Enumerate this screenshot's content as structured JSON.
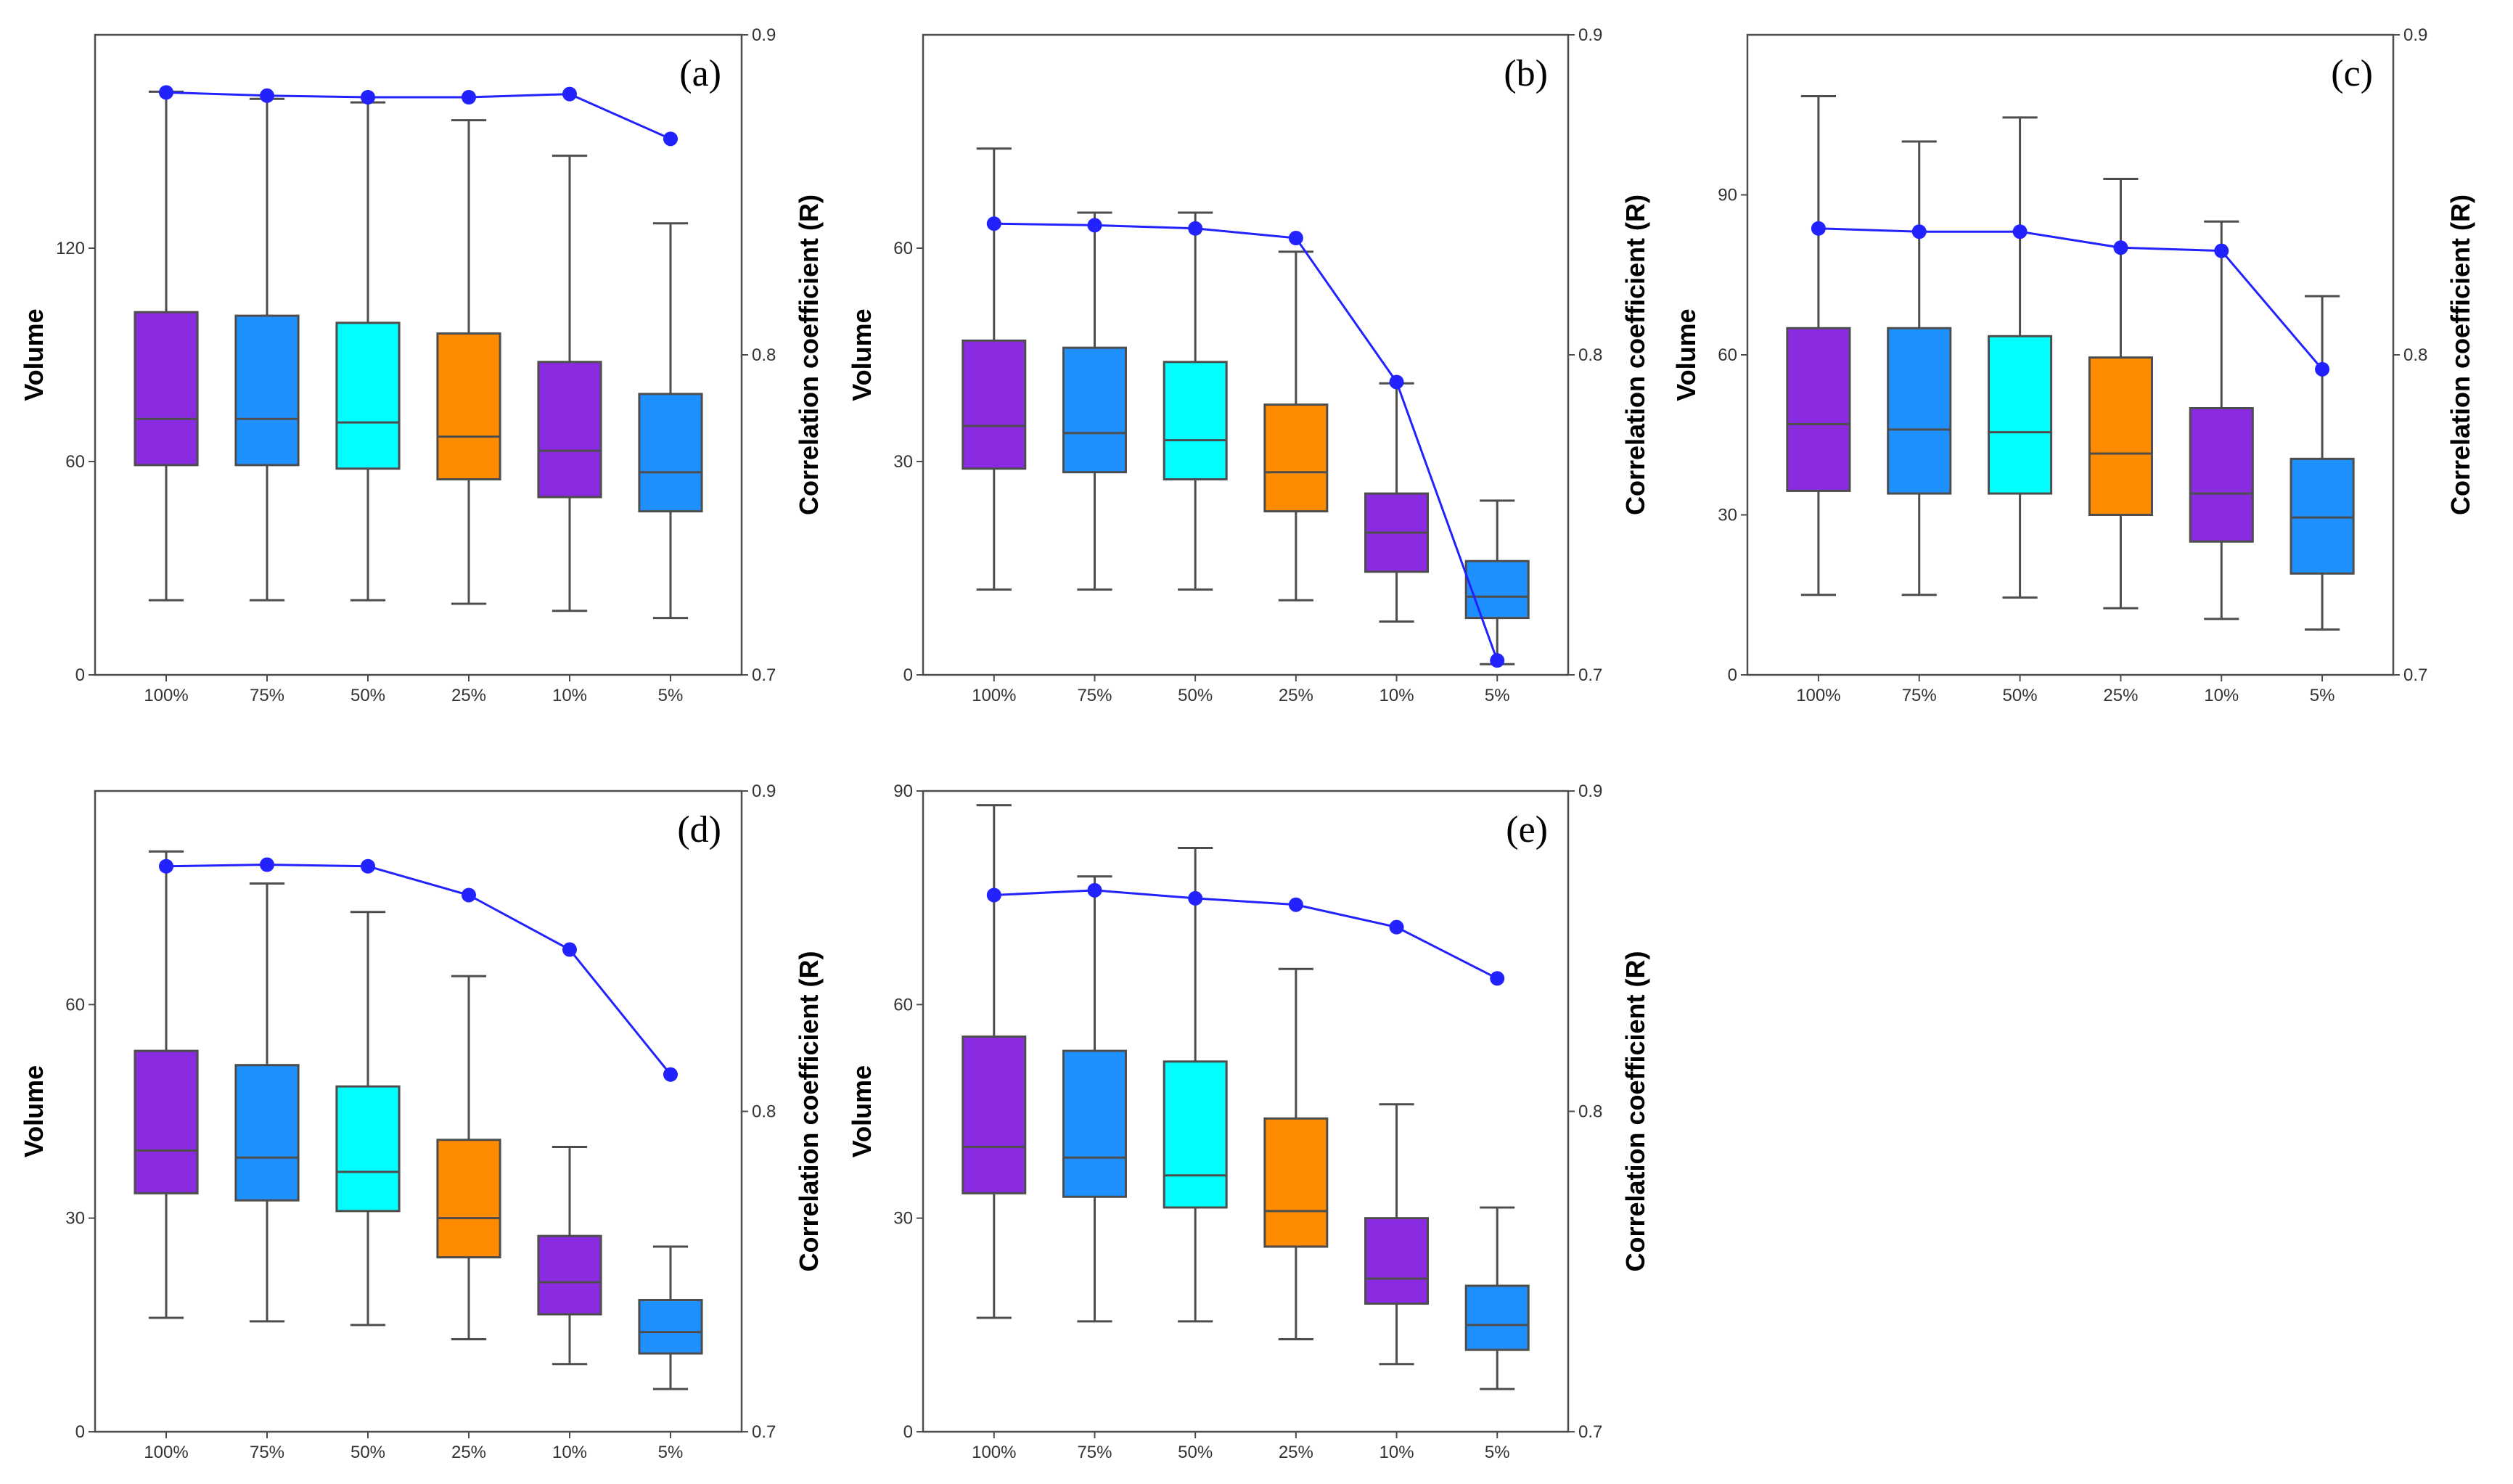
{
  "chart_data": [
    {
      "id": "a",
      "type": "box",
      "panel_label": "(a)",
      "categories": [
        "100%",
        "75%",
        "50%",
        "25%",
        "10%",
        "5%"
      ],
      "ylabel": "Volume",
      "y2label": "Correlation coefficient (R)",
      "ylim": [
        0,
        180
      ],
      "yticks": [
        "0",
        "60",
        "120"
      ],
      "y2lim": [
        0.7,
        0.9
      ],
      "y2ticks": [
        "0.7",
        "0.8",
        "0.9"
      ],
      "box_colors": [
        "#8A2BE2",
        "#1E90FF",
        "#00FFFF",
        "#FF8C00",
        "#8A2BE2",
        "#1E90FF"
      ],
      "line_color": "#2222FF",
      "boxes": [
        {
          "min": 21,
          "q1": 59,
          "median": 72,
          "q3": 102,
          "max": 164
        },
        {
          "min": 21,
          "q1": 59,
          "median": 72,
          "q3": 101,
          "max": 162
        },
        {
          "min": 21,
          "q1": 58,
          "median": 71,
          "q3": 99,
          "max": 161
        },
        {
          "min": 20,
          "q1": 55,
          "median": 67,
          "q3": 96,
          "max": 156
        },
        {
          "min": 18,
          "q1": 50,
          "median": 63,
          "q3": 88,
          "max": 146
        },
        {
          "min": 16,
          "q1": 46,
          "median": 57,
          "q3": 79,
          "max": 127
        }
      ],
      "correlation": [
        0.882,
        0.881,
        0.8805,
        0.8805,
        0.8815,
        0.8675
      ]
    },
    {
      "id": "b",
      "type": "box",
      "panel_label": "(b)",
      "categories": [
        "100%",
        "75%",
        "50%",
        "25%",
        "10%",
        "5%"
      ],
      "ylabel": "Volume",
      "y2label": "Correlation coefficient (R)",
      "ylim": [
        0,
        90
      ],
      "yticks": [
        "0",
        "30",
        "60"
      ],
      "y2lim": [
        0.7,
        0.9
      ],
      "y2ticks": [
        "0.7",
        "0.8",
        "0.9"
      ],
      "box_colors": [
        "#8A2BE2",
        "#1E90FF",
        "#00FFFF",
        "#FF8C00",
        "#8A2BE2",
        "#1E90FF"
      ],
      "line_color": "#2222FF",
      "boxes": [
        {
          "min": 12,
          "q1": 29,
          "median": 35,
          "q3": 47,
          "max": 74
        },
        {
          "min": 12,
          "q1": 28.5,
          "median": 34,
          "q3": 46,
          "max": 65
        },
        {
          "min": 12,
          "q1": 27.5,
          "median": 33,
          "q3": 44,
          "max": 65
        },
        {
          "min": 10.5,
          "q1": 23,
          "median": 28.5,
          "q3": 38,
          "max": 59.5
        },
        {
          "min": 7.5,
          "q1": 14.5,
          "median": 20,
          "q3": 25.5,
          "max": 41
        },
        {
          "min": 1.5,
          "q1": 8,
          "median": 11,
          "q3": 16,
          "max": 24.5
        }
      ],
      "correlation": [
        0.841,
        0.8405,
        0.8395,
        0.8365,
        0.7915,
        0.7045
      ]
    },
    {
      "id": "c",
      "type": "box",
      "panel_label": "(c)",
      "categories": [
        "100%",
        "75%",
        "50%",
        "25%",
        "10%",
        "5%"
      ],
      "ylabel": "Volume",
      "y2label": "Correlation coefficient (R)",
      "ylim": [
        0,
        120
      ],
      "yticks": [
        "0",
        "30",
        "60",
        "90"
      ],
      "y2lim": [
        0.7,
        0.9
      ],
      "y2ticks": [
        "0.7",
        "0.8",
        "0.9"
      ],
      "box_colors": [
        "#8A2BE2",
        "#1E90FF",
        "#00FFFF",
        "#FF8C00",
        "#8A2BE2",
        "#1E90FF"
      ],
      "line_color": "#2222FF",
      "boxes": [
        {
          "min": 15,
          "q1": 34.5,
          "median": 47,
          "q3": 65,
          "max": 108.5
        },
        {
          "min": 15,
          "q1": 34,
          "median": 46,
          "q3": 65,
          "max": 100
        },
        {
          "min": 14.5,
          "q1": 34,
          "median": 45.5,
          "q3": 63.5,
          "max": 104.5
        },
        {
          "min": 12.5,
          "q1": 30,
          "median": 41.5,
          "q3": 59.5,
          "max": 93
        },
        {
          "min": 10.5,
          "q1": 25,
          "median": 34,
          "q3": 50,
          "max": 85
        },
        {
          "min": 8.5,
          "q1": 19,
          "median": 29.5,
          "q3": 40.5,
          "max": 71
        }
      ],
      "correlation": [
        0.8395,
        0.8385,
        0.8385,
        0.8335,
        0.8325,
        0.7955
      ]
    },
    {
      "id": "d",
      "type": "box",
      "panel_label": "(d)",
      "categories": [
        "100%",
        "75%",
        "50%",
        "25%",
        "10%",
        "5%"
      ],
      "ylabel": "Volume",
      "y2label": "Correlation coefficient (R)",
      "ylim": [
        0,
        90
      ],
      "yticks": [
        "0",
        "30",
        "60"
      ],
      "y2lim": [
        0.7,
        0.9
      ],
      "y2ticks": [
        "0.7",
        "0.8",
        "0.9"
      ],
      "box_colors": [
        "#8A2BE2",
        "#1E90FF",
        "#00FFFF",
        "#FF8C00",
        "#8A2BE2",
        "#1E90FF"
      ],
      "line_color": "#2222FF",
      "boxes": [
        {
          "min": 16,
          "q1": 33.5,
          "median": 39.5,
          "q3": 53.5,
          "max": 81.5
        },
        {
          "min": 15.5,
          "q1": 32.5,
          "median": 38.5,
          "q3": 51.5,
          "max": 77
        },
        {
          "min": 15,
          "q1": 31,
          "median": 36.5,
          "q3": 48.5,
          "max": 73
        },
        {
          "min": 13,
          "q1": 24.5,
          "median": 30,
          "q3": 41,
          "max": 64
        },
        {
          "min": 9.5,
          "q1": 16.5,
          "median": 21,
          "q3": 27.5,
          "max": 40
        },
        {
          "min": 6,
          "q1": 11,
          "median": 14,
          "q3": 18.5,
          "max": 26
        }
      ],
      "correlation": [
        0.8765,
        0.877,
        0.8765,
        0.8675,
        0.8505,
        0.8115
      ]
    },
    {
      "id": "e",
      "type": "box",
      "panel_label": "(e)",
      "categories": [
        "100%",
        "75%",
        "50%",
        "25%",
        "10%",
        "5%"
      ],
      "ylabel": "Volume",
      "y2label": "Correlation coefficient (R)",
      "ylim": [
        0,
        90
      ],
      "yticks": [
        "0",
        "30",
        "60",
        "90"
      ],
      "y2lim": [
        0.7,
        0.9
      ],
      "y2ticks": [
        "0.7",
        "0.8",
        "0.9"
      ],
      "box_colors": [
        "#8A2BE2",
        "#1E90FF",
        "#00FFFF",
        "#FF8C00",
        "#8A2BE2",
        "#1E90FF"
      ],
      "line_color": "#2222FF",
      "boxes": [
        {
          "min": 16,
          "q1": 33.5,
          "median": 40,
          "q3": 55.5,
          "max": 88
        },
        {
          "min": 15.5,
          "q1": 33,
          "median": 38.5,
          "q3": 53.5,
          "max": 78
        },
        {
          "min": 15.5,
          "q1": 31.5,
          "median": 36,
          "q3": 52,
          "max": 82
        },
        {
          "min": 13,
          "q1": 26,
          "median": 31,
          "q3": 44,
          "max": 65
        },
        {
          "min": 9.5,
          "q1": 18,
          "median": 21.5,
          "q3": 30,
          "max": 46
        },
        {
          "min": 6,
          "q1": 11.5,
          "median": 15,
          "q3": 20.5,
          "max": 31.5
        }
      ],
      "correlation": [
        0.8675,
        0.869,
        0.8665,
        0.8645,
        0.8575,
        0.8415
      ]
    }
  ]
}
